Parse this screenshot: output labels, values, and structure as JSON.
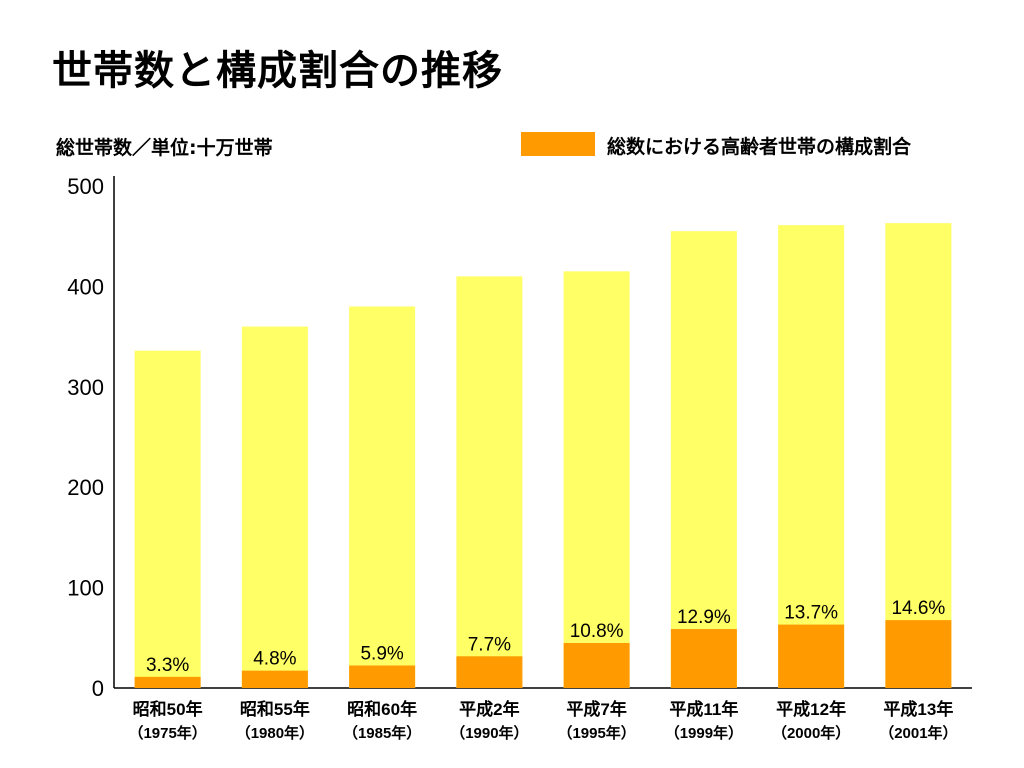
{
  "title": "世帯数と構成割合の推移",
  "colors": {
    "total": "#ffff66",
    "elderly": "#ff9a00"
  },
  "chart_data": {
    "type": "bar",
    "title": "世帯数と構成割合の推移",
    "ylabel": "総世帯数／単位:十万世帯",
    "ylim": [
      0,
      500
    ],
    "yticks": [
      0,
      100,
      200,
      300,
      400,
      500
    ],
    "grid": false,
    "legend_position": "top-right",
    "categories": [
      [
        "昭和50年",
        "（1975年）"
      ],
      [
        "昭和55年",
        "（1980年）"
      ],
      [
        "昭和60年",
        "（1985年）"
      ],
      [
        "平成2年",
        "（1990年）"
      ],
      [
        "平成7年",
        "（1995年）"
      ],
      [
        "平成11年",
        "（1999年）"
      ],
      [
        "平成12年",
        "（2000年）"
      ],
      [
        "平成13年",
        "（2001年）"
      ]
    ],
    "series": [
      {
        "key": "total",
        "values": [
          336,
          360,
          380,
          410,
          415,
          455,
          461,
          463
        ]
      },
      {
        "key": "elderly",
        "name": "総数における高齢者世帯の構成割合",
        "percent": [
          3.3,
          4.8,
          5.9,
          7.7,
          10.8,
          12.9,
          13.7,
          14.6
        ],
        "labels": [
          "3.3%",
          "4.8%",
          "5.9%",
          "7.7%",
          "10.8%",
          "12.9%",
          "13.7%",
          "14.6%"
        ]
      }
    ]
  }
}
